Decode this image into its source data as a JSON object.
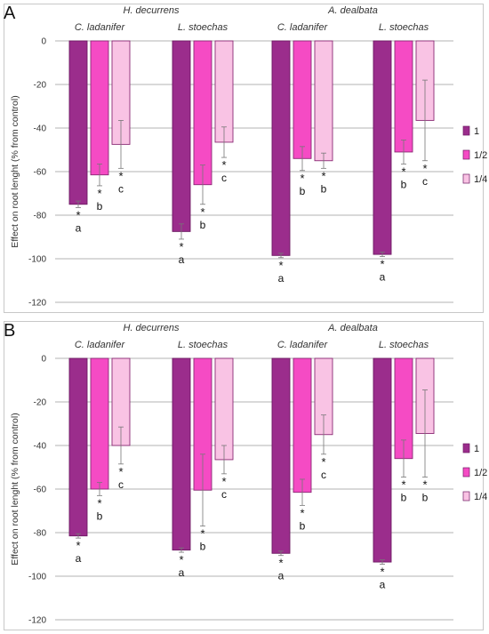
{
  "chart_data": [
    {
      "panel": "A",
      "type": "bar",
      "ylabel": "Effect on root lenght (% from control)",
      "ylim": [
        -120,
        0
      ],
      "yticks": [
        0,
        -20,
        -40,
        -60,
        -80,
        -100,
        -120
      ],
      "grid": true,
      "legend_position": "right",
      "groups": [
        "H. decurrens",
        "A. dealbata"
      ],
      "categories": [
        "C. ladanifer",
        "L. stoechas",
        "C. ladanifer",
        "L. stoechas"
      ],
      "colors": [
        "#9b2d8c",
        "#f54bc4",
        "#f9c3e4"
      ],
      "series": [
        {
          "name": "1",
          "values": [
            -75,
            -87.5,
            -98.5,
            -98
          ],
          "errors": [
            1.5,
            3.5,
            1,
            1
          ],
          "sig": [
            "*",
            "*",
            "*",
            "*"
          ],
          "letters": [
            "a",
            "a",
            "a",
            "a"
          ]
        },
        {
          "name": "1/2",
          "values": [
            -61.5,
            -66,
            -54,
            -51
          ],
          "errors": [
            5,
            9,
            5.5,
            5.5
          ],
          "sig": [
            "*",
            "*",
            "*",
            "*"
          ],
          "letters": [
            "b",
            "b",
            "b",
            "b"
          ]
        },
        {
          "name": "1/4",
          "values": [
            -47.5,
            -46.5,
            -55,
            -36.5
          ],
          "errors": [
            11,
            7,
            3.5,
            18.5
          ],
          "sig": [
            "*",
            "*",
            "*",
            "*"
          ],
          "letters": [
            "c",
            "c",
            "b",
            "c"
          ]
        }
      ]
    },
    {
      "panel": "B",
      "type": "bar",
      "ylabel": "Effect on root lenght (% from control)",
      "ylim": [
        -120,
        0
      ],
      "yticks": [
        0,
        -20,
        -40,
        -60,
        -80,
        -100,
        -120
      ],
      "grid": true,
      "legend_position": "right",
      "groups": [
        "H. decurrens",
        "A. dealbata"
      ],
      "categories": [
        "C. ladanifer",
        "L. stoechas",
        "C. ladanifer",
        "L. stoechas"
      ],
      "colors": [
        "#9b2d8c",
        "#f54bc4",
        "#f9c3e4"
      ],
      "series": [
        {
          "name": "1",
          "values": [
            -81.5,
            -88,
            -89.5,
            -93.5
          ],
          "errors": [
            1,
            1,
            1,
            1
          ],
          "sig": [
            "*",
            "*",
            "*",
            "*"
          ],
          "letters": [
            "a",
            "a",
            "a",
            "a"
          ]
        },
        {
          "name": "1/2",
          "values": [
            -60,
            -60.5,
            -61.5,
            -46
          ],
          "errors": [
            3,
            16.5,
            6,
            8.5
          ],
          "sig": [
            "*",
            "*",
            "*",
            "*"
          ],
          "letters": [
            "b",
            "b",
            "b",
            "b"
          ]
        },
        {
          "name": "1/4",
          "values": [
            -40,
            -46.5,
            -35,
            -34.5
          ],
          "errors": [
            8.5,
            6.5,
            9,
            20
          ],
          "sig": [
            "*",
            "*",
            "*",
            "*"
          ],
          "letters": [
            "c",
            "c",
            "c",
            "b"
          ]
        }
      ]
    }
  ]
}
